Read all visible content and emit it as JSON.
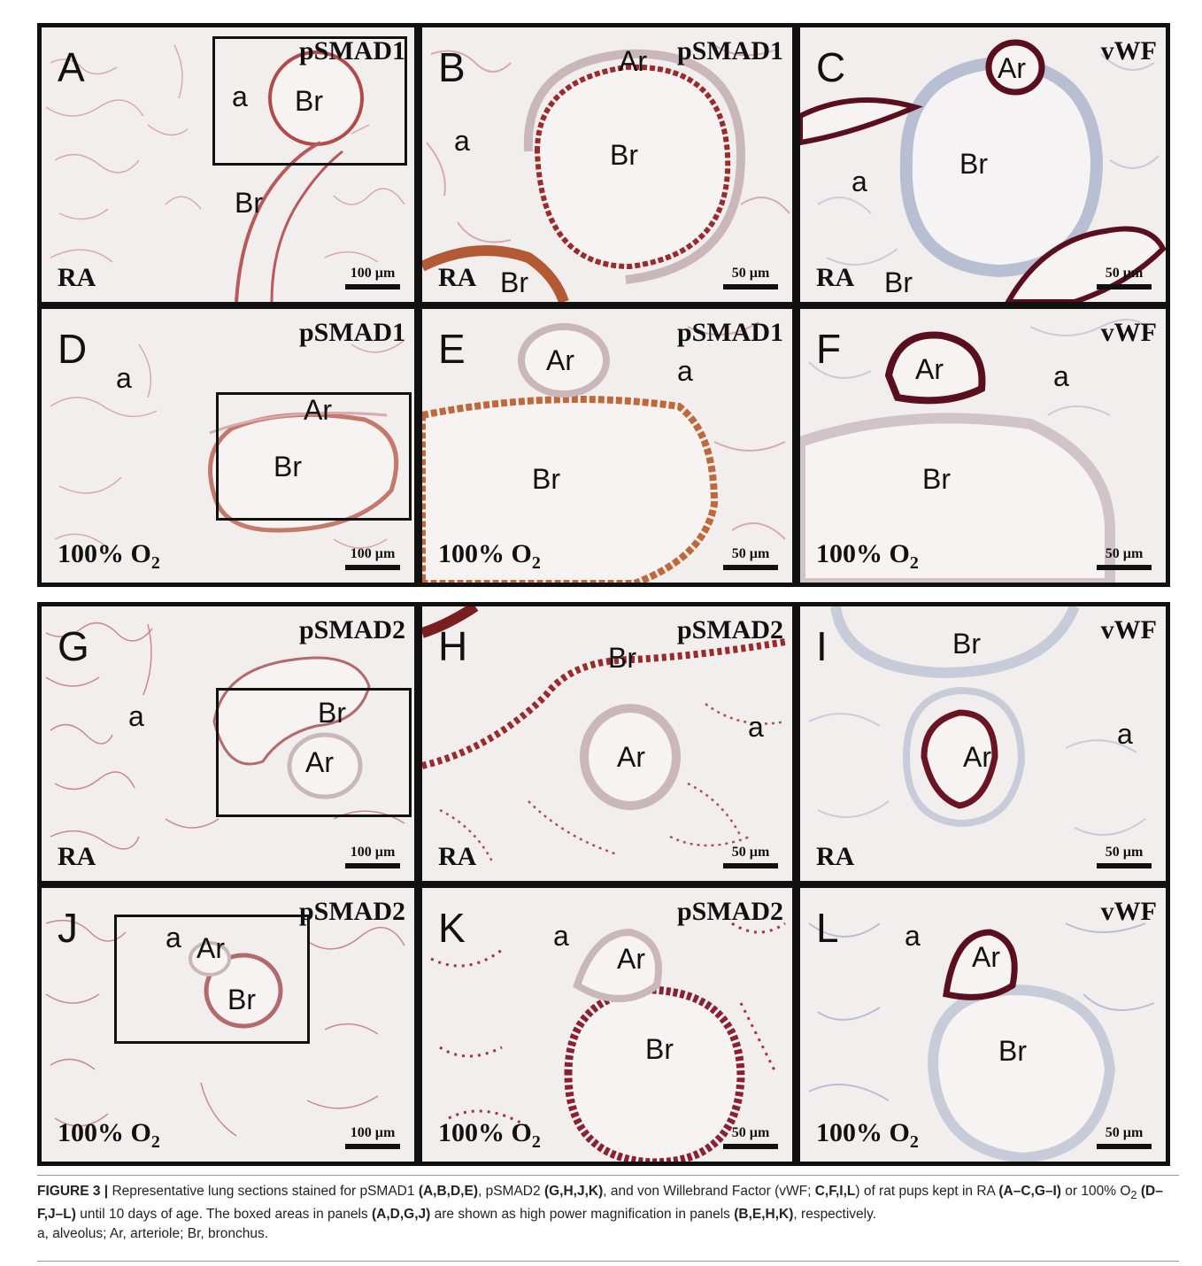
{
  "colors": {
    "background": "#f2eeee",
    "stain_brown": "#9b2a2a",
    "stain_dark": "#5a0f1f",
    "tissue_pink": "#d9a9ae",
    "tissue_blue": "#b9bfd3"
  },
  "panels": {
    "A": {
      "letter": "A",
      "stain": "pSMAD1",
      "condition": "RA",
      "scale": "100 µm",
      "labels": [
        "a",
        "Br",
        "Br"
      ]
    },
    "B": {
      "letter": "B",
      "stain": "pSMAD1",
      "condition": "RA",
      "scale": "50 µm",
      "labels": [
        "Ar",
        "a",
        "Br",
        "Br"
      ]
    },
    "C": {
      "letter": "C",
      "stain": "vWF",
      "condition": "RA",
      "scale": "50 µm",
      "labels": [
        "Ar",
        "Br",
        "a",
        "Br"
      ]
    },
    "D": {
      "letter": "D",
      "stain": "pSMAD1",
      "condition_main": "100% O",
      "condition_sub": "2",
      "scale": "100 µm",
      "labels": [
        "a",
        "Ar",
        "Br"
      ]
    },
    "E": {
      "letter": "E",
      "stain": "pSMAD1",
      "condition_main": "100% O",
      "condition_sub": "2",
      "scale": "50 µm",
      "labels": [
        "Ar",
        "a",
        "Br"
      ]
    },
    "F": {
      "letter": "F",
      "stain": "vWF",
      "condition_main": "100% O",
      "condition_sub": "2",
      "scale": "50 µm",
      "labels": [
        "Ar",
        "a",
        "Br"
      ]
    },
    "G": {
      "letter": "G",
      "stain": "pSMAD2",
      "condition": "RA",
      "scale": "100 µm",
      "labels": [
        "a",
        "Br",
        "Ar"
      ]
    },
    "H": {
      "letter": "H",
      "stain": "pSMAD2",
      "condition": "RA",
      "scale": "50 µm",
      "labels": [
        "Br",
        "a",
        "Ar"
      ]
    },
    "I": {
      "letter": "I",
      "stain": "vWF",
      "condition": "RA",
      "scale": "50 µm",
      "labels": [
        "Br",
        "a",
        "Ar"
      ]
    },
    "J": {
      "letter": "J",
      "stain": "pSMAD2",
      "condition_main": "100% O",
      "condition_sub": "2",
      "scale": "100 µm",
      "labels": [
        "a",
        "Ar",
        "Br"
      ]
    },
    "K": {
      "letter": "K",
      "stain": "pSMAD2",
      "condition_main": "100% O",
      "condition_sub": "2",
      "scale": "50 µm",
      "labels": [
        "a",
        "Ar",
        "Br"
      ]
    },
    "L": {
      "letter": "L",
      "stain": "vWF",
      "condition_main": "100% O",
      "condition_sub": "2",
      "scale": "50 µm",
      "labels": [
        "a",
        "Ar",
        "Br"
      ]
    }
  },
  "caption": {
    "fig": "FIGURE 3 |",
    "t1": " Representative lung sections stained for pSMAD1 ",
    "b1": "(A,B,D,E)",
    "t2": ", pSMAD2 ",
    "b2": "(G,H,J,K)",
    "t3": ", and von Willebrand Factor (vWF; ",
    "b3": "C,F,I,L",
    "t4": ") of rat pups kept in RA ",
    "b4": "(A–C,G–I)",
    "t5": " or 100% O",
    "sub1": "2",
    "t5b": " ",
    "b5": "(D–F,J–L)",
    "t6": " until 10 days of age.  The boxed areas in panels ",
    "b6": "(A,D,G,J)",
    "t7": " are shown as high power magnification in panels ",
    "b7": "(B,E,H,K)",
    "t8": ", respectively.",
    "t9": "a, alveolus; Ar, arteriole; Br, bronchus."
  }
}
